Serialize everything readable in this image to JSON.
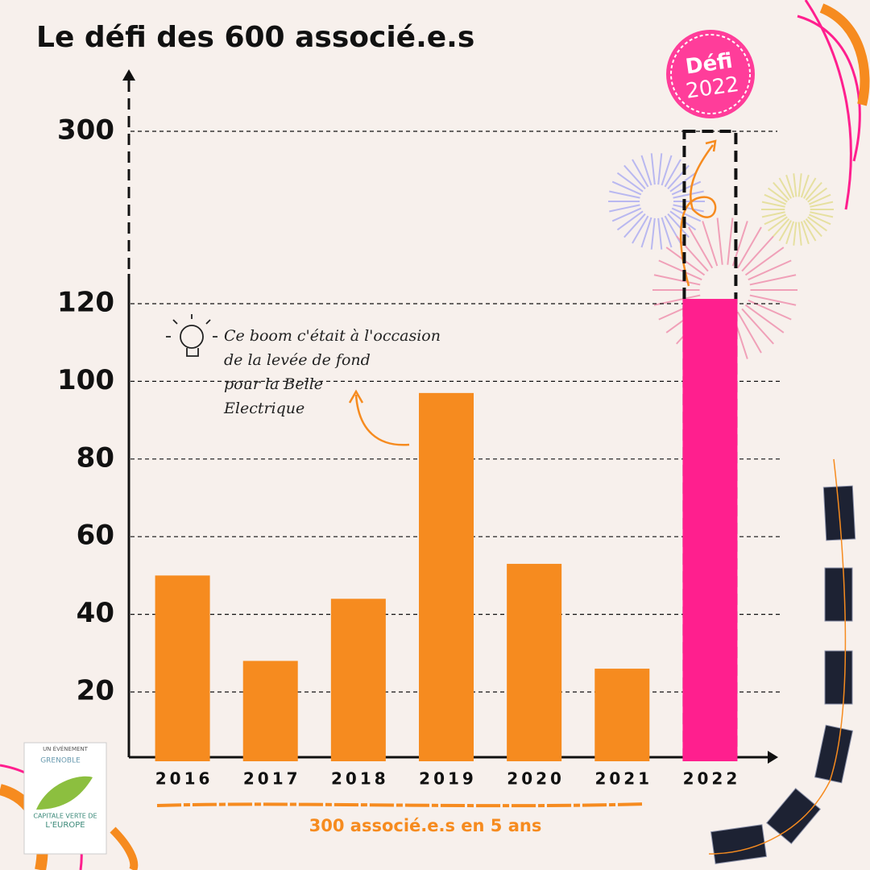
{
  "chart_data": {
    "type": "bar",
    "title": "Le défi des 600 associé.e.s",
    "categories": [
      "2016",
      "2017",
      "2018",
      "2019",
      "2020",
      "2021",
      "2022"
    ],
    "values": [
      50,
      28,
      44,
      97,
      53,
      26,
      125
    ],
    "colors": [
      "#f68b1f",
      "#f68b1f",
      "#f68b1f",
      "#f68b1f",
      "#f68b1f",
      "#f68b1f",
      "#ff1f8e"
    ],
    "ylim": [
      0,
      300
    ],
    "yticks": [
      20,
      40,
      60,
      80,
      100,
      120,
      300
    ],
    "highlight_color": "#ff1f8e",
    "grid": true,
    "annotation": [
      "Ce boom c'était à l'occasion",
      "de la levée de fond",
      "pour la Belle",
      "Electrique"
    ],
    "footer": "300 associé.e.s en 5 ans",
    "badge": [
      "Défi",
      "2022"
    ],
    "logo": {
      "top": "UN ÉVÉNEMENT",
      "city": "GRENOBLE",
      "line1": "CAPITALE VERTE DE",
      "line2": "L'EUROPE"
    }
  }
}
